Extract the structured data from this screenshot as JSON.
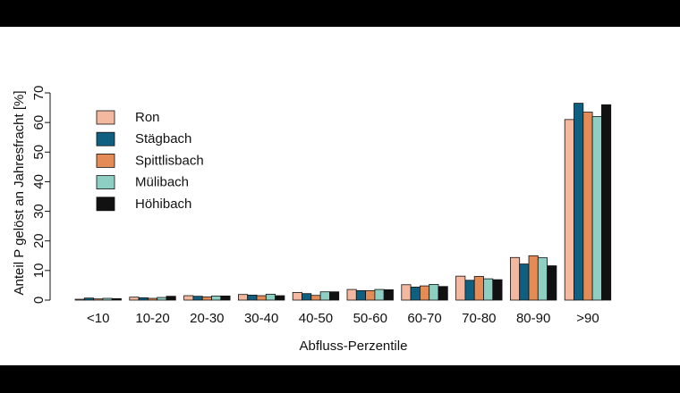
{
  "chart_data": {
    "type": "bar",
    "title": "",
    "xlabel": "Abfluss-Perzentile",
    "ylabel": "Anteil P gelöst an Jahresfracht [%]",
    "ylim": [
      0,
      70
    ],
    "yticks": [
      0,
      10,
      20,
      30,
      40,
      50,
      60,
      70
    ],
    "grid": false,
    "legend_position": "top-left",
    "categories": [
      "<10",
      "10-20",
      "20-30",
      "30-40",
      "40-50",
      "50-60",
      "60-70",
      "70-80",
      "80-90",
      ">90"
    ],
    "series": [
      {
        "name": "Ron",
        "color": "#F4B8A0",
        "values": [
          0.3,
          1.0,
          1.5,
          1.9,
          2.6,
          3.6,
          5.2,
          8.1,
          14.4,
          61.0
        ]
      },
      {
        "name": "Stägbach",
        "color": "#0F6080",
        "values": [
          0.7,
          0.8,
          1.3,
          1.7,
          2.2,
          3.2,
          4.4,
          6.7,
          12.2,
          66.5
        ]
      },
      {
        "name": "Spittlisbach",
        "color": "#E58B55",
        "values": [
          0.4,
          0.6,
          1.1,
          1.5,
          1.6,
          3.2,
          4.8,
          8.0,
          15.0,
          63.5
        ]
      },
      {
        "name": "Mülibach",
        "color": "#8ECFC4",
        "values": [
          0.6,
          0.9,
          1.4,
          2.0,
          2.8,
          3.6,
          5.3,
          7.2,
          14.3,
          62.0
        ]
      },
      {
        "name": "Höhibach",
        "color": "#111111",
        "values": [
          0.5,
          1.3,
          1.4,
          1.5,
          2.8,
          3.5,
          4.6,
          6.9,
          11.6,
          66.0
        ]
      }
    ]
  }
}
